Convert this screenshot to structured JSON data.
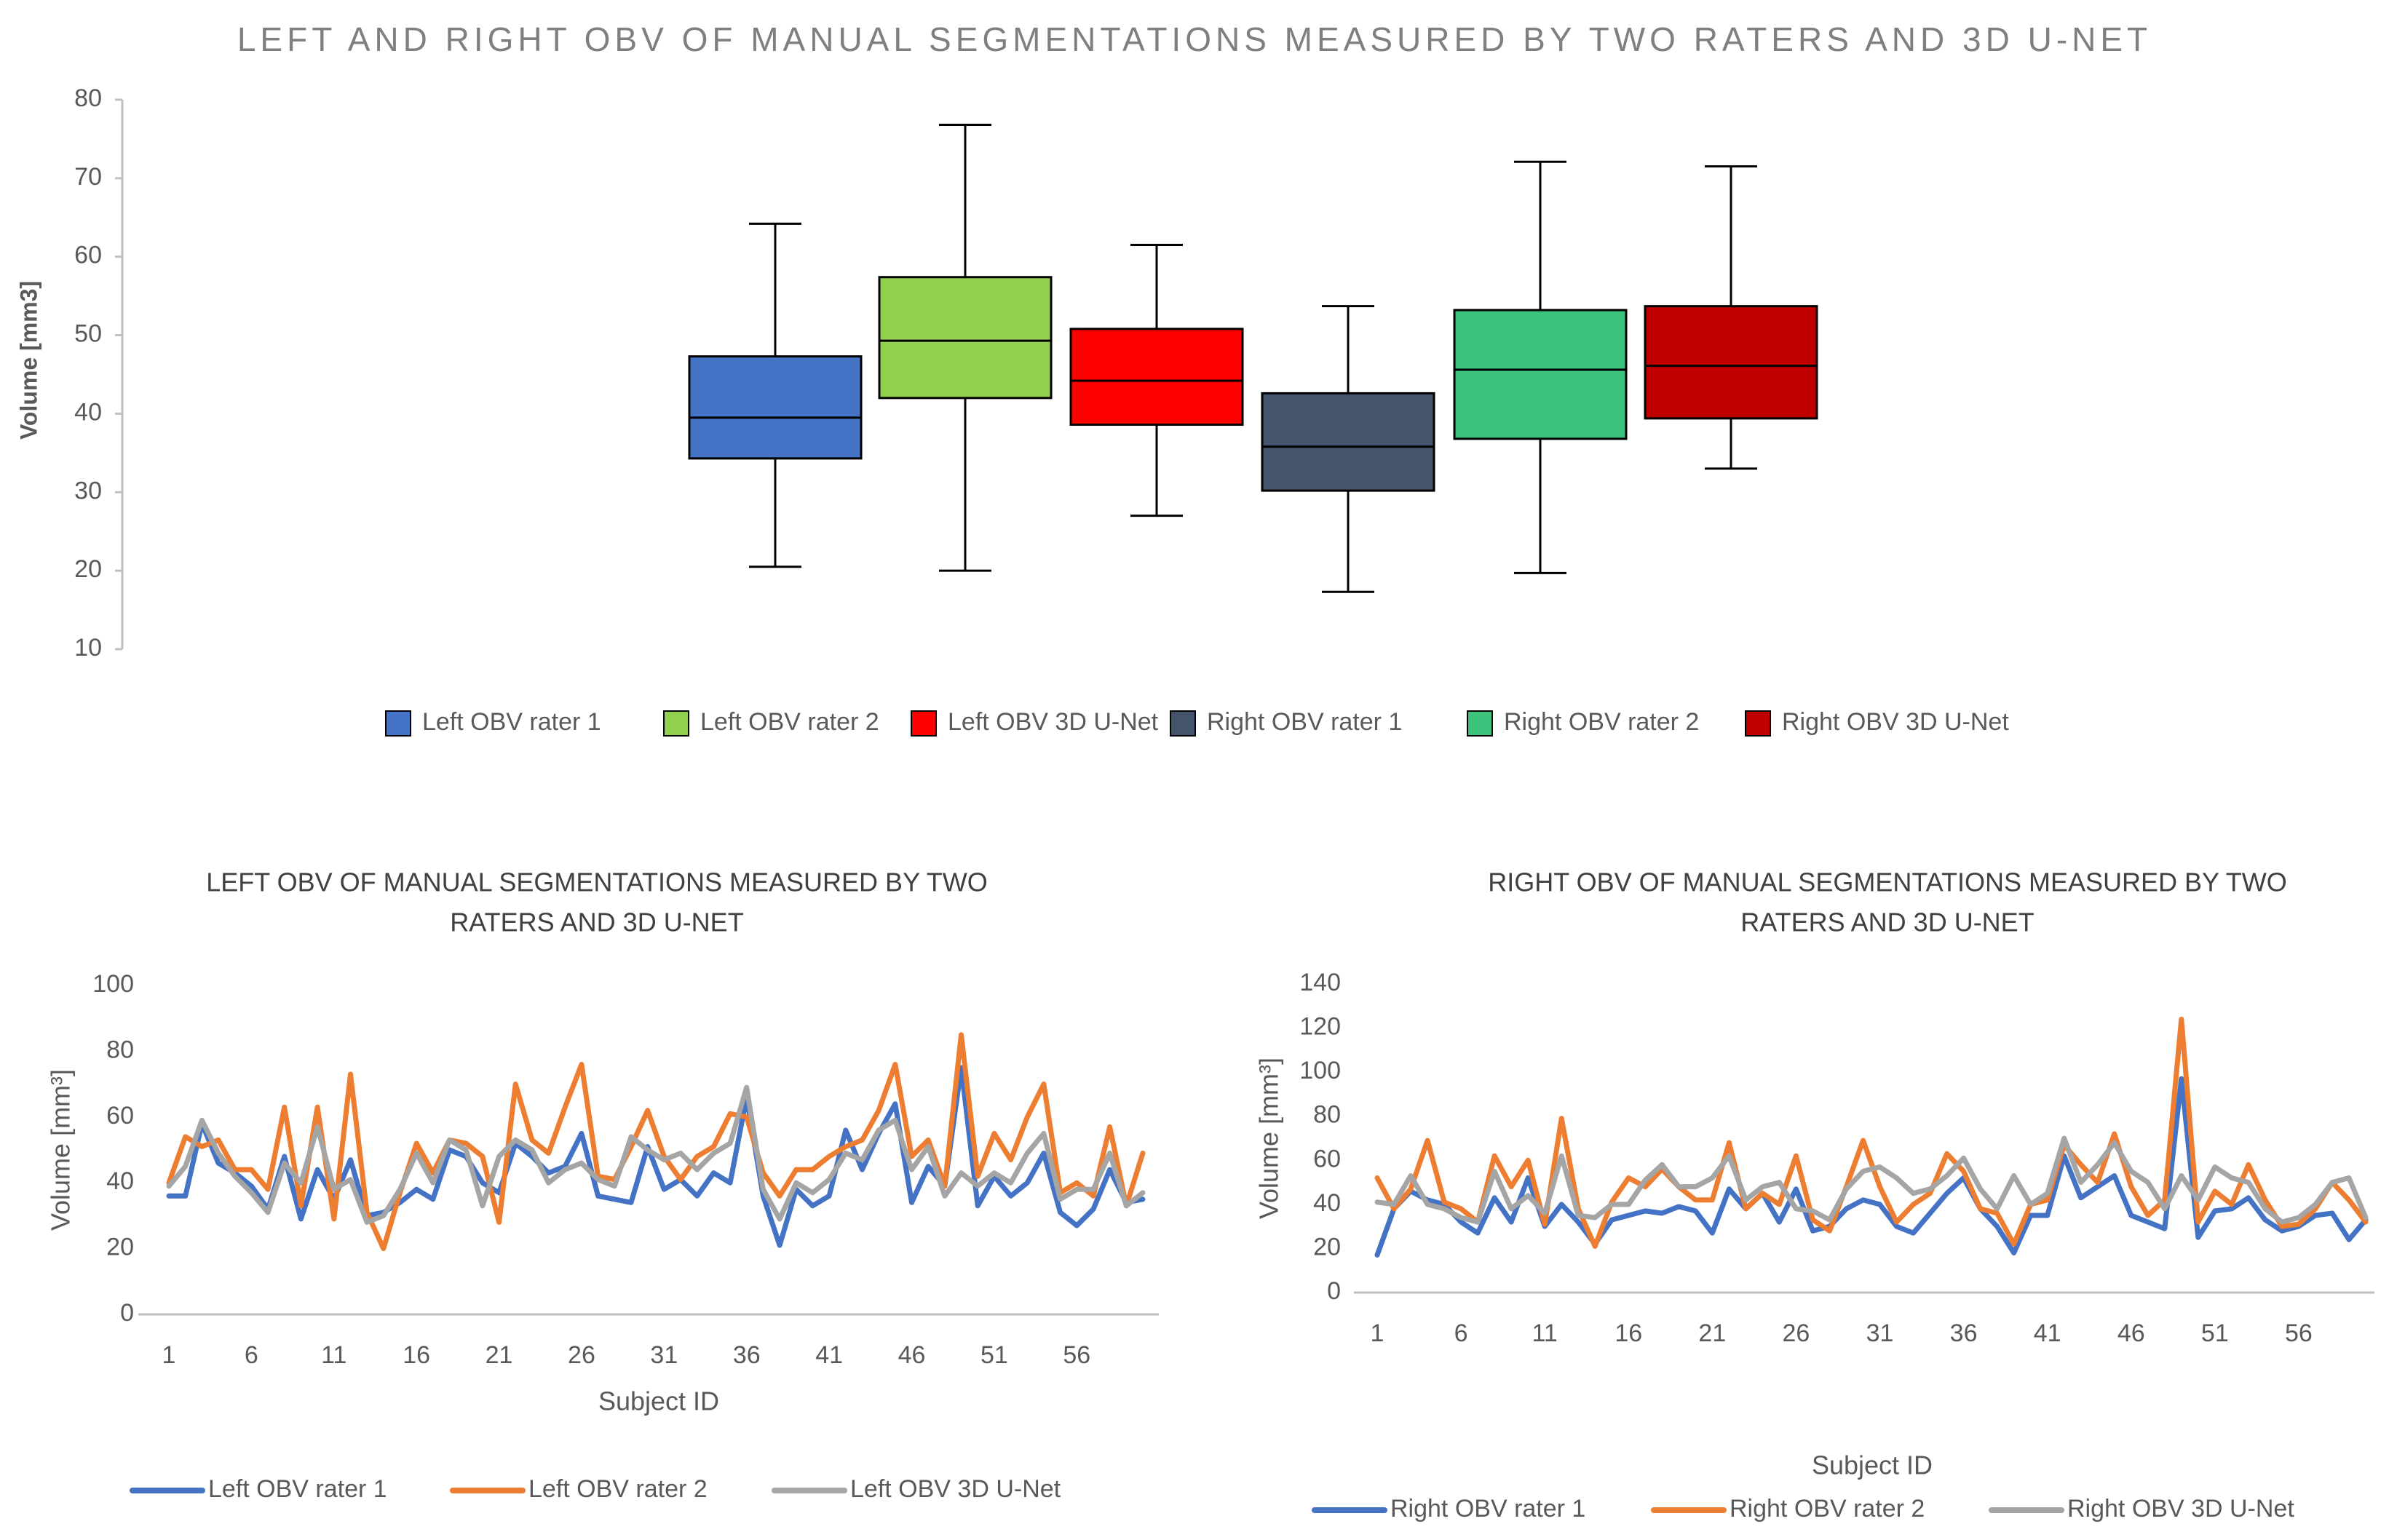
{
  "chart_data": [
    {
      "type": "box",
      "title": "LEFT AND RIGHT OBV OF MANUAL SEGMENTATIONS MEASURED BY TWO RATERS AND 3D U-NET",
      "ylabel": "Volume [mm3]",
      "ylim": [
        10,
        80
      ],
      "yticks": [
        10,
        20,
        30,
        40,
        50,
        60,
        70,
        80
      ],
      "grid": false,
      "legend_position": "bottom",
      "series": [
        {
          "name": "Left OBV rater 1",
          "color": "#4472C4",
          "min": 20.5,
          "q1": 34.3,
          "median": 39.5,
          "q3": 47.3,
          "max": 64.2
        },
        {
          "name": "Left OBV rater 2",
          "color": "#92D050",
          "min": 20.0,
          "q1": 42.0,
          "median": 49.3,
          "q3": 57.4,
          "max": 76.8
        },
        {
          "name": "Left OBV 3D U-Net",
          "color": "#FF0000",
          "min": 27.0,
          "q1": 38.6,
          "median": 44.2,
          "q3": 50.8,
          "max": 61.5
        },
        {
          "name": "Right OBV rater 1",
          "color": "#44546A",
          "min": 17.3,
          "q1": 30.2,
          "median": 35.8,
          "q3": 42.6,
          "max": 53.7
        },
        {
          "name": "Right OBV rater 2",
          "color": "#3CC27A",
          "min": 19.7,
          "q1": 36.8,
          "median": 45.6,
          "q3": 53.2,
          "max": 72.1
        },
        {
          "name": "Right OBV 3D U-Net",
          "color": "#C00000",
          "min": 33.0,
          "q1": 39.4,
          "median": 46.1,
          "q3": 53.7,
          "max": 71.5
        }
      ]
    },
    {
      "type": "line",
      "title": "LEFT OBV OF MANUAL SEGMENTATIONS MEASURED BY TWO RATERS AND 3D U-NET",
      "xlabel": "Subject ID",
      "ylabel": "Volume [mm³]",
      "ylim": [
        0,
        100
      ],
      "yticks": [
        0,
        20,
        40,
        60,
        80,
        100
      ],
      "xticks": [
        1,
        6,
        11,
        16,
        21,
        26,
        31,
        36,
        41,
        46,
        51,
        56
      ],
      "x_count": 60,
      "grid": false,
      "legend_position": "bottom",
      "series": [
        {
          "name": "Left OBV rater 1",
          "color": "#4472C4",
          "values": [
            36,
            36,
            58,
            46,
            43,
            39,
            32,
            48,
            29,
            44,
            35,
            47,
            30,
            31,
            34,
            38,
            35,
            50,
            48,
            40,
            37,
            52,
            48,
            43,
            45,
            55,
            36,
            35,
            34,
            51,
            38,
            41,
            36,
            43,
            40,
            66,
            36,
            21,
            38,
            33,
            36,
            56,
            44,
            55,
            64,
            34,
            45,
            39,
            75,
            33,
            42,
            36,
            40,
            49,
            31,
            27,
            32,
            44,
            34,
            35
          ]
        },
        {
          "name": "Left OBV rater 2",
          "color": "#ED7D31",
          "values": [
            40,
            54,
            51,
            53,
            44,
            44,
            38,
            63,
            33,
            63,
            29,
            73,
            31,
            20,
            37,
            52,
            43,
            53,
            52,
            48,
            28,
            70,
            53,
            49,
            63,
            76,
            42,
            41,
            51,
            62,
            48,
            41,
            48,
            51,
            61,
            60,
            43,
            36,
            44,
            44,
            48,
            51,
            53,
            62,
            76,
            48,
            53,
            39,
            85,
            42,
            55,
            47,
            60,
            70,
            37,
            40,
            36,
            57,
            33,
            49
          ]
        },
        {
          "name": "Left OBV 3D U-Net",
          "color": "#A5A5A5",
          "values": [
            39,
            45,
            59,
            49,
            42,
            37,
            31,
            46,
            40,
            57,
            38,
            41,
            28,
            30,
            38,
            49,
            40,
            53,
            50,
            33,
            48,
            53,
            50,
            40,
            44,
            46,
            41,
            39,
            54,
            50,
            47,
            49,
            44,
            49,
            52,
            69,
            38,
            29,
            40,
            37,
            41,
            49,
            47,
            56,
            59,
            44,
            51,
            36,
            43,
            39,
            43,
            40,
            49,
            55,
            35,
            38,
            38,
            49,
            33,
            37
          ]
        }
      ]
    },
    {
      "type": "line",
      "title": "RIGHT OBV OF MANUAL SEGMENTATIONS MEASURED BY TWO RATERS AND 3D U-NET",
      "xlabel": "Subject ID",
      "ylabel": "Volume [mm³]",
      "ylim": [
        0,
        140
      ],
      "yticks": [
        0,
        20,
        40,
        60,
        80,
        100,
        120,
        140
      ],
      "xticks": [
        1,
        6,
        11,
        16,
        21,
        26,
        31,
        36,
        41,
        46,
        51,
        56
      ],
      "x_count": 60,
      "grid": false,
      "legend_position": "bottom",
      "series": [
        {
          "name": "Right OBV rater 1",
          "color": "#4472C4",
          "values": [
            17,
            38,
            46,
            42,
            40,
            32,
            27,
            43,
            32,
            52,
            30,
            40,
            32,
            22,
            33,
            35,
            37,
            36,
            39,
            37,
            27,
            47,
            38,
            45,
            32,
            47,
            28,
            30,
            38,
            42,
            40,
            30,
            27,
            36,
            45,
            52,
            38,
            30,
            18,
            35,
            35,
            62,
            43,
            48,
            53,
            35,
            32,
            29,
            97,
            25,
            37,
            38,
            43,
            33,
            28,
            30,
            35,
            36,
            24,
            33
          ]
        },
        {
          "name": "Right OBV rater 2",
          "color": "#ED7D31",
          "values": [
            52,
            38,
            47,
            69,
            41,
            38,
            32,
            62,
            48,
            60,
            31,
            79,
            38,
            21,
            41,
            52,
            48,
            56,
            48,
            42,
            42,
            68,
            38,
            45,
            40,
            62,
            33,
            28,
            48,
            69,
            48,
            32,
            40,
            45,
            63,
            55,
            38,
            36,
            22,
            40,
            42,
            67,
            58,
            50,
            72,
            48,
            35,
            42,
            124,
            32,
            46,
            40,
            58,
            42,
            30,
            31,
            38,
            50,
            42,
            32
          ]
        },
        {
          "name": "Right OBV 3D U-Net",
          "color": "#A5A5A5",
          "values": [
            41,
            40,
            53,
            40,
            38,
            34,
            32,
            55,
            38,
            44,
            36,
            62,
            35,
            34,
            40,
            40,
            51,
            58,
            48,
            48,
            52,
            62,
            42,
            48,
            50,
            38,
            37,
            33,
            47,
            55,
            57,
            52,
            45,
            47,
            53,
            61,
            47,
            38,
            53,
            40,
            45,
            70,
            50,
            58,
            68,
            55,
            50,
            38,
            53,
            42,
            57,
            52,
            50,
            38,
            32,
            34,
            40,
            50,
            52,
            34
          ]
        }
      ]
    }
  ]
}
